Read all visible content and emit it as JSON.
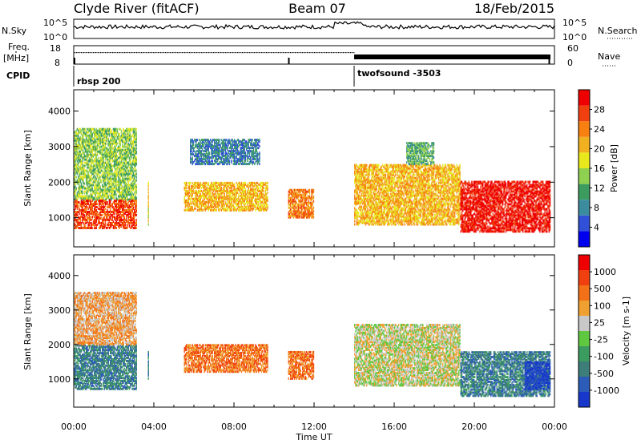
{
  "header": {
    "site": "Clyde River (fitACF)",
    "beam": "Beam 07",
    "date": "18/Feb/2015"
  },
  "noise_panel": {
    "left_label": "N.Sky",
    "right_label": "N.Search",
    "left_ticks": [
      "10^5",
      "10^0"
    ],
    "right_ticks": [
      "10^5",
      "10^0"
    ]
  },
  "freq_panel": {
    "left_label_top": "Freq.",
    "left_label_bottom": "[MHz]",
    "right_label": "Nave",
    "left_ticks": [
      "18",
      "8"
    ],
    "right_ticks": [
      "60",
      "0"
    ]
  },
  "cpid": {
    "label": "CPID",
    "programs": [
      {
        "name": "rbsp 200",
        "start_hour": 0
      },
      {
        "name": "twofsound -3503",
        "start_hour": 14
      }
    ]
  },
  "time_axis": {
    "label": "Time UT",
    "ticks": [
      "00:00",
      "04:00",
      "08:00",
      "12:00",
      "16:00",
      "20:00",
      "00:00"
    ],
    "range_hours": [
      0,
      24
    ]
  },
  "chart_data": [
    {
      "type": "heatmap",
      "parameter": "Power",
      "xlabel": "Time UT",
      "ylabel": "Slant Range [km]",
      "xlim_hours": [
        0,
        24
      ],
      "ylim_km": [
        180,
        4600
      ],
      "yticks": [
        1000,
        2000,
        3000,
        4000
      ],
      "colorbar": {
        "label": "Power [dB]",
        "ticks": [
          "4",
          "8",
          "12",
          "16",
          "20",
          "24",
          "28"
        ],
        "range": [
          0,
          32
        ],
        "colors": [
          "#0000ee",
          "#3050d8",
          "#3c8ca0",
          "#3c9c60",
          "#8fd050",
          "#e8e81c",
          "#f0b020",
          "#f88010",
          "#f04010",
          "#ee0000"
        ]
      },
      "regions": [
        {
          "t": [
            0.0,
            3.1
          ],
          "r": [
            1500,
            3500
          ],
          "level": 4
        },
        {
          "t": [
            0.0,
            3.1
          ],
          "r": [
            700,
            1500
          ],
          "level": 8
        },
        {
          "t": [
            3.7,
            3.7
          ],
          "r": [
            800,
            2000
          ],
          "level": 5
        },
        {
          "t": [
            5.5,
            9.7
          ],
          "r": [
            1200,
            2000
          ],
          "level": 6
        },
        {
          "t": [
            5.8,
            9.3
          ],
          "r": [
            2500,
            3200
          ],
          "level": 2
        },
        {
          "t": [
            10.7,
            12.0
          ],
          "r": [
            1000,
            1800
          ],
          "level": 7
        },
        {
          "t": [
            14.0,
            19.3
          ],
          "r": [
            800,
            2500
          ],
          "level": 6
        },
        {
          "t": [
            19.3,
            23.8
          ],
          "r": [
            600,
            2000
          ],
          "level": 9
        },
        {
          "t": [
            16.6,
            18.0
          ],
          "r": [
            2500,
            3100
          ],
          "level": 3
        }
      ]
    },
    {
      "type": "heatmap",
      "parameter": "Velocity",
      "xlabel": "Time UT",
      "ylabel": "Slant Range [km]",
      "xlim_hours": [
        0,
        24
      ],
      "ylim_km": [
        180,
        4600
      ],
      "yticks": [
        1000,
        2000,
        3000,
        4000
      ],
      "colorbar": {
        "label": "Velocity [m s-1]",
        "ticks": [
          "1000",
          "500",
          "100",
          "25",
          "-25",
          "-100",
          "-500",
          "-1000"
        ],
        "range": [
          -1250,
          1250
        ],
        "colors": [
          "#1838cc",
          "#2c5cb8",
          "#3d7d7a",
          "#3c9c60",
          "#60c840",
          "#c8c8c8",
          "#f0a030",
          "#f27018",
          "#f04010",
          "#ee0000"
        ]
      },
      "regions": [
        {
          "t": [
            0.0,
            3.1
          ],
          "r": [
            700,
            2000
          ],
          "level": 2
        },
        {
          "t": [
            0.0,
            3.1
          ],
          "r": [
            2000,
            3500
          ],
          "level": 6
        },
        {
          "t": [
            3.7,
            3.7
          ],
          "r": [
            1000,
            1800
          ],
          "level": 2
        },
        {
          "t": [
            5.5,
            9.7
          ],
          "r": [
            1200,
            2000
          ],
          "level": 7
        },
        {
          "t": [
            10.7,
            12.0
          ],
          "r": [
            1000,
            1800
          ],
          "level": 7
        },
        {
          "t": [
            14.0,
            19.3
          ],
          "r": [
            800,
            2600
          ],
          "level": 5
        },
        {
          "t": [
            19.3,
            23.8
          ],
          "r": [
            500,
            1800
          ],
          "level": 2
        },
        {
          "t": [
            22.5,
            23.8
          ],
          "r": [
            700,
            1500
          ],
          "level": 0
        }
      ]
    }
  ]
}
